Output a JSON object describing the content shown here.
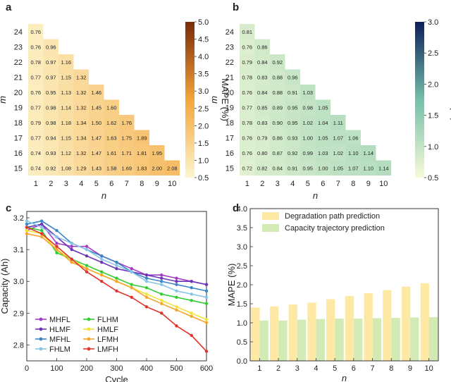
{
  "colors": {
    "heat_a_low": "#fdf6cf",
    "heat_a_mid": "#f4a53a",
    "heat_a_high": "#7a2a08",
    "heat_b_low": "#f7fbd8",
    "heat_b_mid": "#74c0a9",
    "heat_b_high": "#0c1f5c",
    "bar_degradation": "#fde9a3",
    "bar_capacity": "#d2ebb4"
  },
  "chart_data": [
    {
      "panel": "a",
      "type": "heatmap",
      "xlabel": "n",
      "ylabel": "m",
      "x": [
        1,
        2,
        3,
        4,
        5,
        6,
        7,
        8,
        9,
        10
      ],
      "y": [
        24,
        23,
        22,
        21,
        20,
        19,
        18,
        17,
        16,
        15
      ],
      "rows": [
        [
          0.76
        ],
        [
          0.76,
          0.96
        ],
        [
          0.78,
          0.97,
          1.16
        ],
        [
          0.77,
          0.97,
          1.15,
          1.32
        ],
        [
          0.76,
          0.95,
          1.13,
          1.32,
          1.46
        ],
        [
          0.77,
          0.98,
          1.14,
          1.32,
          1.45,
          1.6
        ],
        [
          0.79,
          0.98,
          1.18,
          1.34,
          1.5,
          1.62,
          1.76
        ],
        [
          0.77,
          0.94,
          1.15,
          1.34,
          1.47,
          1.63,
          1.75,
          1.89
        ],
        [
          0.74,
          0.93,
          1.12,
          1.32,
          1.47,
          1.61,
          1.71,
          1.81,
          1.95
        ],
        [
          0.74,
          0.92,
          1.08,
          1.29,
          1.43,
          1.58,
          1.69,
          1.83,
          2.0,
          2.08
        ]
      ],
      "colorbar": {
        "label": "MAPE (%)",
        "min": 0.5,
        "max": 5.0,
        "ticks": [
          "0.5",
          "1.0",
          "1.5",
          "2.0",
          "2.5",
          "3.0",
          "3.5",
          "4.0",
          "4.5",
          "5.0"
        ]
      }
    },
    {
      "panel": "b",
      "type": "heatmap",
      "xlabel": "n",
      "ylabel": "m",
      "x": [
        1,
        2,
        3,
        4,
        5,
        6,
        7,
        8,
        9,
        10
      ],
      "y": [
        24,
        23,
        22,
        21,
        20,
        19,
        18,
        17,
        16,
        15
      ],
      "rows": [
        [
          0.81
        ],
        [
          0.76,
          0.86
        ],
        [
          0.79,
          0.84,
          0.92
        ],
        [
          0.78,
          0.83,
          0.88,
          0.96
        ],
        [
          0.76,
          0.84,
          0.88,
          0.91,
          1.03
        ],
        [
          0.77,
          0.85,
          0.89,
          0.95,
          0.98,
          1.05
        ],
        [
          0.78,
          0.83,
          0.9,
          0.95,
          1.02,
          1.04,
          1.11
        ],
        [
          0.76,
          0.79,
          0.86,
          0.93,
          1.0,
          1.05,
          1.07,
          1.06
        ],
        [
          0.76,
          0.8,
          0.87,
          0.92,
          0.99,
          1.03,
          1.02,
          1.1,
          1.14
        ],
        [
          0.72,
          0.82,
          0.84,
          0.91,
          0.95,
          1.0,
          1.05,
          1.07,
          1.1,
          1.14
        ]
      ],
      "colorbar": {
        "label": "MAPE (%)",
        "min": 0.5,
        "max": 3.0,
        "ticks": [
          "0.5",
          "1.0",
          "1.5",
          "2.0",
          "2.5",
          "3.0"
        ]
      }
    },
    {
      "panel": "c",
      "type": "line",
      "xlabel": "Cycle",
      "ylabel": "Capacity (Ah)",
      "xlim": [
        0,
        600
      ],
      "ylim": [
        2.75,
        3.22
      ],
      "xticks": [
        "0",
        "100",
        "200",
        "300",
        "400",
        "500",
        "600"
      ],
      "yticks": [
        "2.8",
        "2.9",
        "3.0",
        "3.1",
        "3.2"
      ],
      "series": [
        {
          "name": "MHFL",
          "color": "#a23bc4",
          "x": [
            0,
            50,
            100,
            150,
            200,
            250,
            300,
            350,
            400,
            450,
            500,
            550,
            600
          ],
          "y": [
            3.16,
            3.18,
            3.12,
            3.11,
            3.11,
            3.08,
            3.06,
            3.04,
            3.02,
            3.02,
            3.01,
            3.0,
            2.99
          ]
        },
        {
          "name": "HLMF",
          "color": "#6a35b8",
          "x": [
            0,
            50,
            100,
            150,
            200,
            250,
            300,
            350,
            400,
            450,
            500,
            550,
            600
          ],
          "y": [
            3.17,
            3.18,
            3.14,
            3.1,
            3.08,
            3.06,
            3.04,
            3.03,
            3.02,
            3.01,
            3.0,
            3.0,
            2.99
          ]
        },
        {
          "name": "MFHL",
          "color": "#3a86c6",
          "x": [
            0,
            50,
            100,
            150,
            200,
            250,
            300,
            350,
            400,
            450,
            500,
            550,
            600
          ],
          "y": [
            3.18,
            3.19,
            3.16,
            3.12,
            3.1,
            3.08,
            3.06,
            3.03,
            3.01,
            3.0,
            2.99,
            2.98,
            2.97
          ]
        },
        {
          "name": "FHLM",
          "color": "#86c5e6",
          "x": [
            0,
            50,
            100,
            150,
            200,
            250,
            300,
            350,
            400,
            450,
            500,
            550,
            600
          ],
          "y": [
            3.19,
            3.17,
            3.14,
            3.12,
            3.1,
            3.07,
            3.05,
            3.03,
            3.0,
            2.99,
            2.97,
            2.96,
            2.95
          ]
        },
        {
          "name": "FLHM",
          "color": "#33cc33",
          "x": [
            0,
            50,
            100,
            150,
            200,
            250,
            300,
            350,
            400,
            450,
            500,
            550,
            600
          ],
          "y": [
            3.17,
            3.16,
            3.09,
            3.07,
            3.05,
            3.03,
            3.01,
            2.99,
            2.98,
            2.96,
            2.95,
            2.94,
            2.93
          ]
        },
        {
          "name": "HMLF",
          "color": "#f2e23a",
          "x": [
            0,
            50,
            100,
            150,
            200,
            250,
            300,
            350,
            400,
            450,
            500,
            550,
            600
          ],
          "y": [
            3.16,
            3.15,
            3.1,
            3.07,
            3.04,
            3.02,
            3.0,
            2.98,
            2.96,
            2.94,
            2.92,
            2.9,
            2.88
          ]
        },
        {
          "name": "LFMH",
          "color": "#f5a52a",
          "x": [
            0,
            50,
            100,
            150,
            200,
            250,
            300,
            350,
            400,
            450,
            500,
            550,
            600
          ],
          "y": [
            3.15,
            3.14,
            3.1,
            3.06,
            3.04,
            3.02,
            3.0,
            2.98,
            2.95,
            2.93,
            2.91,
            2.89,
            2.87
          ]
        },
        {
          "name": "LMFH",
          "color": "#e0352b",
          "x": [
            0,
            50,
            100,
            150,
            200,
            250,
            300,
            350,
            400,
            450,
            500,
            550,
            600
          ],
          "y": [
            3.17,
            3.15,
            3.11,
            3.07,
            3.03,
            3.0,
            2.97,
            2.95,
            2.92,
            2.9,
            2.86,
            2.83,
            2.78
          ]
        }
      ]
    },
    {
      "panel": "d",
      "type": "bar",
      "xlabel": "n",
      "ylabel": "MAPE (%)",
      "categories": [
        "1",
        "2",
        "3",
        "4",
        "5",
        "6",
        "7",
        "8",
        "9",
        "10"
      ],
      "ylim": [
        0,
        4.0
      ],
      "yticks": [
        "0.0",
        "0.5",
        "1.0",
        "1.5",
        "2.0",
        "2.5",
        "3.0",
        "3.5",
        "4.0"
      ],
      "series": [
        {
          "name": "Degradation path prediction",
          "values": [
            1.4,
            1.43,
            1.48,
            1.53,
            1.62,
            1.7,
            1.78,
            1.86,
            1.95,
            2.04
          ]
        },
        {
          "name": "Capacity trajectory prediction",
          "values": [
            1.06,
            1.06,
            1.08,
            1.1,
            1.11,
            1.11,
            1.12,
            1.13,
            1.14,
            1.15
          ]
        }
      ]
    }
  ]
}
